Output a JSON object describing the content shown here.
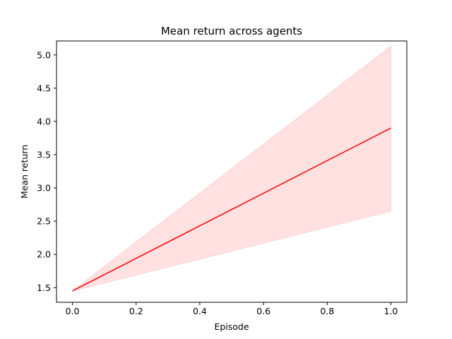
{
  "chart_data": {
    "type": "line",
    "title": "Mean return across agents",
    "xlabel": "Episode",
    "ylabel": "Mean return",
    "xlim": [
      -0.05,
      1.05
    ],
    "ylim": [
      1.28,
      5.21
    ],
    "xticks": [
      0.0,
      0.2,
      0.4,
      0.6,
      0.8,
      1.0
    ],
    "xtick_labels": [
      "0.0",
      "0.2",
      "0.4",
      "0.6",
      "0.8",
      "1.0"
    ],
    "yticks": [
      1.5,
      2.0,
      2.5,
      3.0,
      3.5,
      4.0,
      4.5,
      5.0
    ],
    "ytick_labels": [
      "1.5",
      "2.0",
      "2.5",
      "3.0",
      "3.5",
      "4.0",
      "4.5",
      "5.0"
    ],
    "grid": false,
    "series": [
      {
        "x": [
          0.0,
          1.0
        ],
        "y": [
          1.45,
          3.9
        ],
        "color": "#ff0000",
        "band": {
          "lower": [
            1.45,
            2.65
          ],
          "upper": [
            1.45,
            5.13
          ],
          "color": "#ffe1e1"
        }
      }
    ]
  }
}
